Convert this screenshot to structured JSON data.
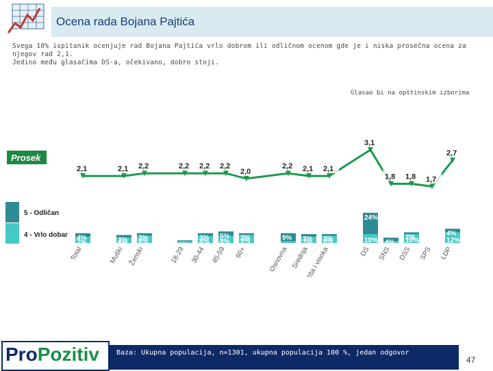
{
  "header": {
    "title": "Ocena rada Bojana Pajtića",
    "subtitle_line1": "Svega 10% ispitanik ocenjuje rad Bojana Pajtića vrlo dobrom ili odličnom ocenom gde je i niska prosečna ocena za njegov rad 2,1.",
    "subtitle_line2": "Jedino među glasačima DS-a, očekivano, dobro stoji."
  },
  "group_note": "Glasao bi na opštinskim izborima",
  "footer": {
    "base_note": "Baza: Ukupna populacija, n=1301, ukupna populacija 100 %, jedan odgovor",
    "page_number": "47",
    "brand_part1": "Pro",
    "brand_part2": "Pozitiv"
  },
  "colors": {
    "odlican": "#2e8a93",
    "vrlo_dobar": "#45c9c6",
    "prosek_line": "#1a9a4a",
    "prosek_label_bg": "#1f8a45",
    "header_band": "#d9eaf1",
    "title": "#1a3d7a",
    "footer_band": "#0d2a66"
  },
  "chart_data": {
    "type": "bar",
    "title": "Ocena rada Bojana Pajtića",
    "categories": [
      "Total",
      "Muški",
      "Ženski",
      "18-29",
      "30-44",
      "45-59",
      "60+",
      "Osnovna",
      "Srednja",
      "Viša i visoka",
      "DS",
      "SNS",
      "DSS",
      "SPS",
      "LDP"
    ],
    "series": [
      {
        "name": "5 - Odličan",
        "values": [
          "4%",
          "3%",
          "3%",
          "1%",
          "3%",
          "5%",
          "2%",
          "9%",
          "3%",
          "2%",
          "24%",
          "4%",
          "2%",
          "0%",
          "4%"
        ]
      },
      {
        "name": "4 - Vrlo dobar",
        "values": [
          "7%",
          "6%",
          "8%",
          "2%",
          "8%",
          "8%",
          "9%",
          "2%",
          "7%",
          "8%",
          "10%",
          "2%",
          "10%",
          "0%",
          "12%"
        ]
      }
    ],
    "prosek": {
      "name": "Prosek",
      "values": [
        "2,1",
        "2,1",
        "2,2",
        "2,2",
        "2,2",
        "2,2",
        "2,0",
        "2,2",
        "2,1",
        "2,1",
        "3,1",
        "1,8",
        "1,8",
        "1,7",
        "2,7"
      ]
    },
    "legend": [
      "5 - Odličan",
      "4 - Vrlo dobar"
    ],
    "legend_position": "left",
    "prosek_label": "Prosek",
    "xlabel": "",
    "ylabel": ""
  }
}
